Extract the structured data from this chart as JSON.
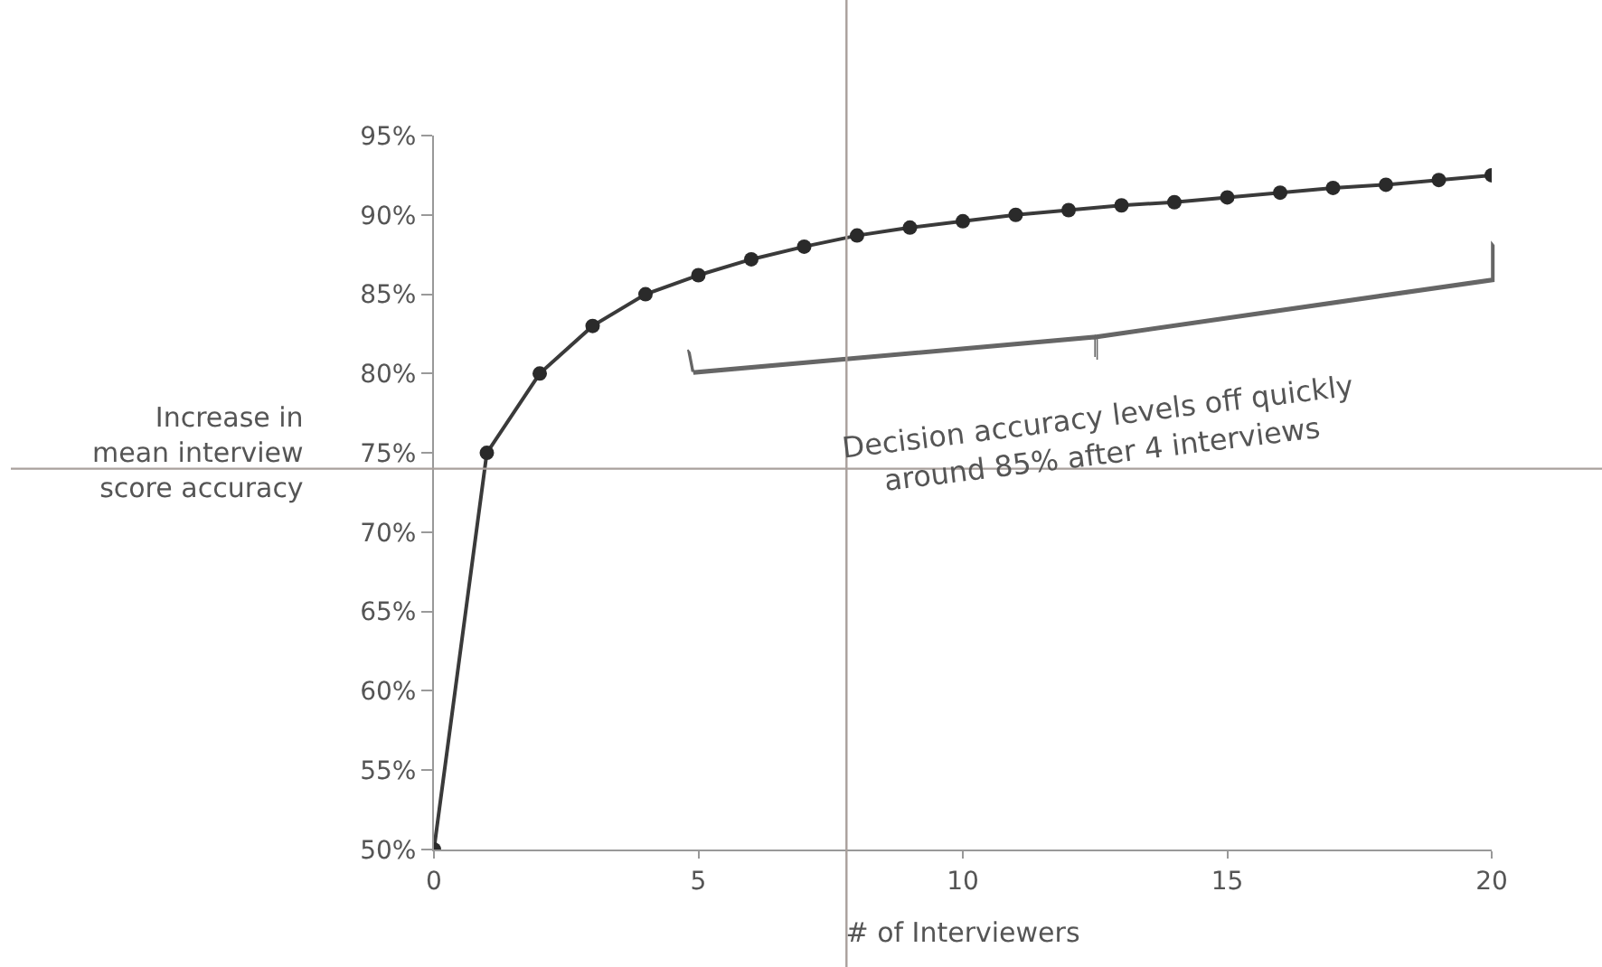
{
  "chart_data": {
    "type": "line",
    "xlabel": "# of Interviewers",
    "ylabel": "Increase in\nmean interview\nscore accuracy",
    "x": [
      0,
      1,
      2,
      3,
      4,
      5,
      6,
      7,
      8,
      9,
      10,
      11,
      12,
      13,
      14,
      15,
      16,
      17,
      18,
      19,
      20
    ],
    "series": [
      {
        "color": "#3a3a3a",
        "values": [
          50,
          75,
          80,
          83,
          85,
          86.2,
          87.2,
          88,
          88.7,
          89.2,
          89.6,
          90,
          90.3,
          90.6,
          90.8,
          91.1,
          91.4,
          91.7,
          91.9,
          92.2,
          92.5
        ]
      }
    ],
    "xlim": [
      0,
      20
    ],
    "xticks": [
      0,
      5,
      10,
      15,
      20
    ],
    "ylim": [
      50,
      95
    ],
    "yticks": [
      {
        "value": 50,
        "label": "50%"
      },
      {
        "value": 55,
        "label": "55%"
      },
      {
        "value": 60,
        "label": "60%"
      },
      {
        "value": 65,
        "label": "65%"
      },
      {
        "value": 70,
        "label": "70%"
      },
      {
        "value": 75,
        "label": "75%"
      },
      {
        "value": 80,
        "label": "80%"
      },
      {
        "value": 85,
        "label": "85%"
      },
      {
        "value": 90,
        "label": "90%"
      },
      {
        "value": 95,
        "label": "95%"
      }
    ],
    "ref_lines": [
      {
        "axis": "x",
        "value": 7.8,
        "color": "#a9a09c"
      },
      {
        "axis": "y",
        "value": 74,
        "color": "#a9a09c"
      }
    ],
    "annotations": [
      "Decision accuracy levels off quickly\naround 85% after 4 interviews"
    ],
    "marker": "circle",
    "line_style": "solid",
    "legend": false
  }
}
